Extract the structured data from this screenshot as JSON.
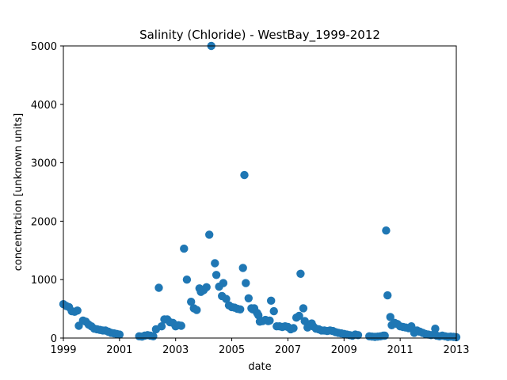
{
  "chart_data": {
    "type": "scatter",
    "title": "Salinity (Chloride) - WestBay_1999-2012",
    "xlabel": "date",
    "ylabel": "concentration [unknown units]",
    "xlim": [
      1999,
      2013
    ],
    "ylim": [
      0,
      5000
    ],
    "x_ticks": [
      "1999",
      "2001",
      "2003",
      "2005",
      "2007",
      "2009",
      "2011",
      "2013"
    ],
    "y_ticks": [
      "0",
      "1000",
      "2000",
      "3000",
      "4000",
      "5000"
    ],
    "grid": false,
    "marker_color": "#1f77b4",
    "points": [
      [
        1999.0,
        580
      ],
      [
        1999.1,
        550
      ],
      [
        1999.2,
        530
      ],
      [
        1999.3,
        460
      ],
      [
        1999.4,
        450
      ],
      [
        1999.5,
        470
      ],
      [
        1999.55,
        210
      ],
      [
        1999.7,
        300
      ],
      [
        1999.8,
        280
      ],
      [
        1999.9,
        230
      ],
      [
        2000.0,
        200
      ],
      [
        2000.1,
        160
      ],
      [
        2000.2,
        150
      ],
      [
        2000.3,
        140
      ],
      [
        2000.4,
        130
      ],
      [
        2000.5,
        130
      ],
      [
        2000.6,
        110
      ],
      [
        2000.7,
        90
      ],
      [
        2000.8,
        80
      ],
      [
        2000.9,
        70
      ],
      [
        2001.0,
        60
      ],
      [
        2001.7,
        30
      ],
      [
        2001.8,
        25
      ],
      [
        2001.9,
        40
      ],
      [
        2002.0,
        50
      ],
      [
        2002.1,
        40
      ],
      [
        2002.2,
        30
      ],
      [
        2002.3,
        150
      ],
      [
        2002.4,
        860
      ],
      [
        2002.5,
        200
      ],
      [
        2002.6,
        320
      ],
      [
        2002.7,
        320
      ],
      [
        2002.8,
        270
      ],
      [
        2002.9,
        260
      ],
      [
        2003.0,
        200
      ],
      [
        2003.1,
        220
      ],
      [
        2003.2,
        210
      ],
      [
        2003.3,
        1530
      ],
      [
        2003.4,
        1000
      ],
      [
        2003.55,
        620
      ],
      [
        2003.65,
        510
      ],
      [
        2003.75,
        480
      ],
      [
        2003.85,
        850
      ],
      [
        2003.9,
        790
      ],
      [
        2004.0,
        820
      ],
      [
        2004.1,
        870
      ],
      [
        2004.2,
        1770
      ],
      [
        2004.27,
        5000
      ],
      [
        2004.4,
        1280
      ],
      [
        2004.45,
        1080
      ],
      [
        2004.55,
        880
      ],
      [
        2004.65,
        720
      ],
      [
        2004.7,
        940
      ],
      [
        2004.8,
        670
      ],
      [
        2004.9,
        560
      ],
      [
        2005.0,
        530
      ],
      [
        2005.1,
        520
      ],
      [
        2005.2,
        500
      ],
      [
        2005.3,
        490
      ],
      [
        2005.4,
        1200
      ],
      [
        2005.45,
        2790
      ],
      [
        2005.5,
        940
      ],
      [
        2005.6,
        680
      ],
      [
        2005.7,
        510
      ],
      [
        2005.75,
        490
      ],
      [
        2005.8,
        510
      ],
      [
        2005.9,
        430
      ],
      [
        2005.95,
        390
      ],
      [
        2006.0,
        280
      ],
      [
        2006.1,
        290
      ],
      [
        2006.2,
        310
      ],
      [
        2006.3,
        290
      ],
      [
        2006.35,
        300
      ],
      [
        2006.4,
        640
      ],
      [
        2006.5,
        460
      ],
      [
        2006.6,
        200
      ],
      [
        2006.7,
        200
      ],
      [
        2006.8,
        190
      ],
      [
        2006.9,
        200
      ],
      [
        2007.0,
        190
      ],
      [
        2007.1,
        150
      ],
      [
        2007.2,
        170
      ],
      [
        2007.3,
        350
      ],
      [
        2007.4,
        380
      ],
      [
        2007.45,
        1100
      ],
      [
        2007.55,
        510
      ],
      [
        2007.6,
        290
      ],
      [
        2007.7,
        180
      ],
      [
        2007.8,
        240
      ],
      [
        2007.85,
        250
      ],
      [
        2007.9,
        200
      ],
      [
        2008.0,
        160
      ],
      [
        2008.1,
        150
      ],
      [
        2008.2,
        130
      ],
      [
        2008.3,
        130
      ],
      [
        2008.4,
        120
      ],
      [
        2008.5,
        130
      ],
      [
        2008.6,
        120
      ],
      [
        2008.7,
        100
      ],
      [
        2008.8,
        90
      ],
      [
        2008.9,
        80
      ],
      [
        2009.0,
        70
      ],
      [
        2009.1,
        60
      ],
      [
        2009.2,
        50
      ],
      [
        2009.3,
        40
      ],
      [
        2009.4,
        60
      ],
      [
        2009.5,
        50
      ],
      [
        2009.9,
        30
      ],
      [
        2010.0,
        25
      ],
      [
        2010.1,
        20
      ],
      [
        2010.2,
        25
      ],
      [
        2010.3,
        30
      ],
      [
        2010.4,
        40
      ],
      [
        2010.45,
        40
      ],
      [
        2010.5,
        1840
      ],
      [
        2010.55,
        730
      ],
      [
        2010.65,
        360
      ],
      [
        2010.7,
        220
      ],
      [
        2010.8,
        260
      ],
      [
        2010.9,
        240
      ],
      [
        2011.0,
        200
      ],
      [
        2011.1,
        190
      ],
      [
        2011.2,
        180
      ],
      [
        2011.3,
        170
      ],
      [
        2011.4,
        200
      ],
      [
        2011.5,
        90
      ],
      [
        2011.6,
        130
      ],
      [
        2011.7,
        110
      ],
      [
        2011.8,
        90
      ],
      [
        2011.9,
        70
      ],
      [
        2012.0,
        60
      ],
      [
        2012.1,
        50
      ],
      [
        2012.2,
        60
      ],
      [
        2012.25,
        160
      ],
      [
        2012.3,
        40
      ],
      [
        2012.4,
        30
      ],
      [
        2012.5,
        40
      ],
      [
        2012.6,
        30
      ],
      [
        2012.7,
        20
      ],
      [
        2012.8,
        25
      ],
      [
        2012.9,
        20
      ],
      [
        2013.0,
        15
      ]
    ]
  }
}
